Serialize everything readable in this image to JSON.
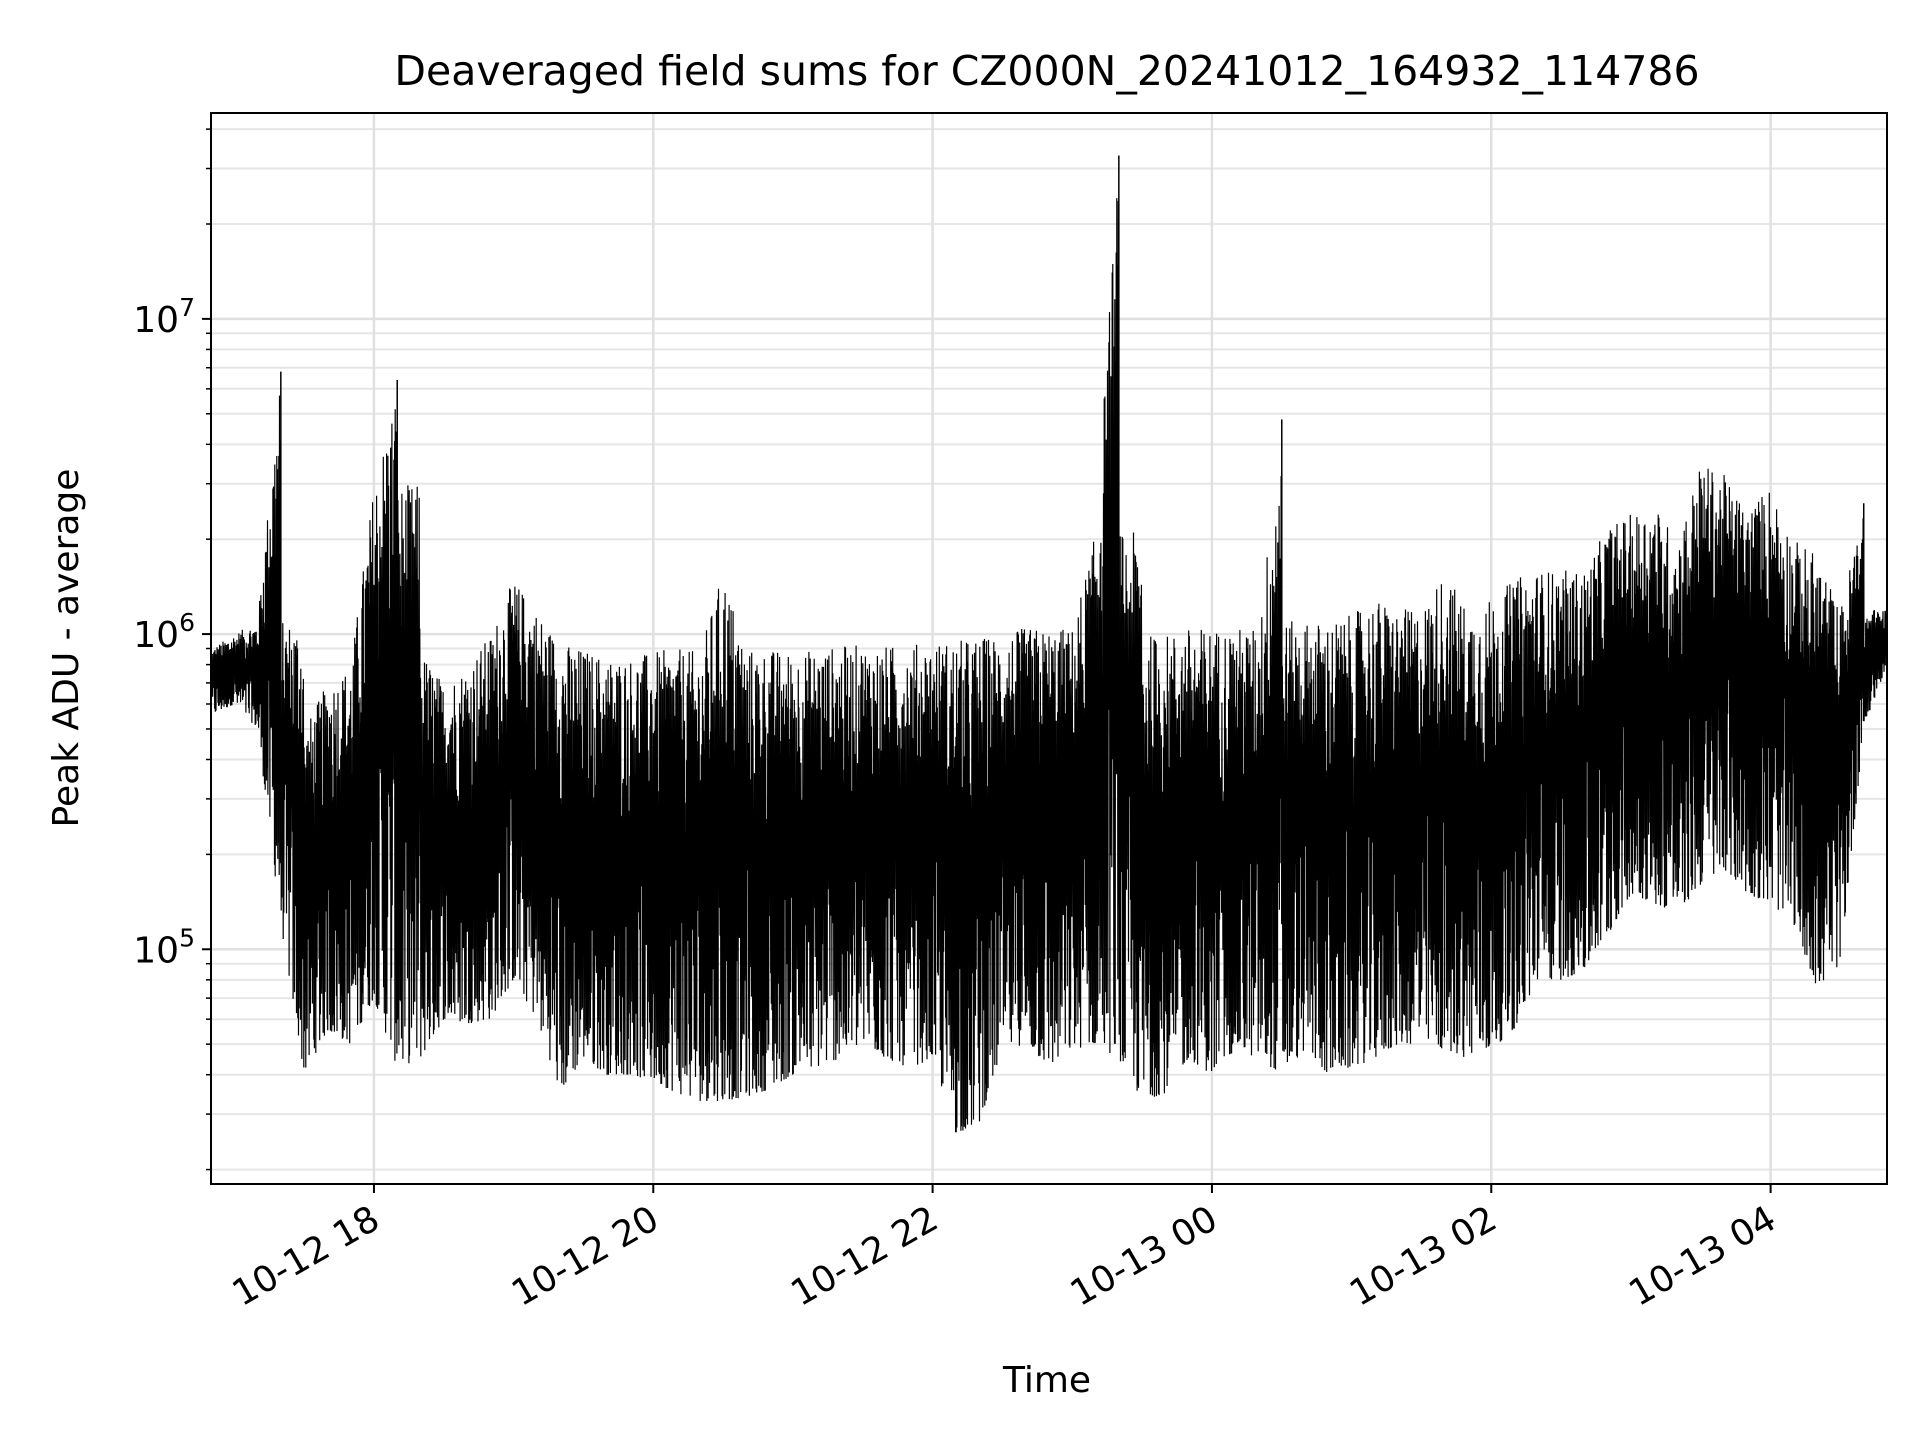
{
  "chart_data": {
    "type": "line",
    "title": "Deaveraged field sums for CZ000N_20241012_164932_114786",
    "xlabel": "Time",
    "ylabel": "Peak ADU - average",
    "yscale": "log",
    "ylim": [
      18000,
      45000000
    ],
    "xlim": [
      "2024-10-12 16:50",
      "2024-10-13 04:50"
    ],
    "x_tick_labels": [
      "10-12 18",
      "10-12 20",
      "10-12 22",
      "10-13 00",
      "10-13 02",
      "10-13 04"
    ],
    "x_tick_times": [
      "2024-10-12 18:00",
      "2024-10-12 20:00",
      "2024-10-12 22:00",
      "2024-10-13 00:00",
      "2024-10-13 02:00",
      "2024-10-13 04:00"
    ],
    "y_tick_exponents": [
      "5",
      "6",
      "7"
    ],
    "y_tick_values": [
      100000,
      1000000,
      10000000
    ],
    "grid": true,
    "legend": "none",
    "line_color": "#000000",
    "series": [
      {
        "x": [
          "2024-10-12 16:50",
          "2024-10-12 17:00",
          "2024-10-12 17:10",
          "2024-10-12 17:20",
          "2024-10-12 17:30",
          "2024-10-12 17:40",
          "2024-10-12 17:50",
          "2024-10-12 18:00",
          "2024-10-12 18:10",
          "2024-10-12 18:20",
          "2024-10-12 18:30",
          "2024-10-12 18:40",
          "2024-10-12 18:50",
          "2024-10-12 19:00",
          "2024-10-12 19:10",
          "2024-10-12 19:20",
          "2024-10-12 19:30",
          "2024-10-12 19:40",
          "2024-10-12 19:50",
          "2024-10-12 20:00",
          "2024-10-12 20:10",
          "2024-10-12 20:20",
          "2024-10-12 20:30",
          "2024-10-12 20:40",
          "2024-10-12 20:50",
          "2024-10-12 21:00",
          "2024-10-12 21:10",
          "2024-10-12 21:20",
          "2024-10-12 21:30",
          "2024-10-12 21:40",
          "2024-10-12 21:50",
          "2024-10-12 22:00",
          "2024-10-12 22:10",
          "2024-10-12 22:20",
          "2024-10-12 22:30",
          "2024-10-12 22:40",
          "2024-10-12 22:50",
          "2024-10-12 23:00",
          "2024-10-12 23:10",
          "2024-10-12 23:20",
          "2024-10-12 23:30",
          "2024-10-12 23:40",
          "2024-10-12 23:50",
          "2024-10-13 00:00",
          "2024-10-13 00:10",
          "2024-10-13 00:20",
          "2024-10-13 00:30",
          "2024-10-13 00:40",
          "2024-10-13 00:50",
          "2024-10-13 01:00",
          "2024-10-13 01:10",
          "2024-10-13 01:20",
          "2024-10-13 01:30",
          "2024-10-13 01:40",
          "2024-10-13 01:50",
          "2024-10-13 02:00",
          "2024-10-13 02:10",
          "2024-10-13 02:20",
          "2024-10-13 02:30",
          "2024-10-13 02:40",
          "2024-10-13 02:50",
          "2024-10-13 03:00",
          "2024-10-13 03:10",
          "2024-10-13 03:20",
          "2024-10-13 03:30",
          "2024-10-13 03:40",
          "2024-10-13 03:50",
          "2024-10-13 04:00",
          "2024-10-13 04:10",
          "2024-10-13 04:20",
          "2024-10-13 04:30",
          "2024-10-13 04:40",
          "2024-10-13 04:50"
        ],
        "high": [
          900000,
          1000000,
          1100000,
          6800000,
          500000,
          700000,
          800000,
          3000000,
          6400000,
          900000,
          700000,
          800000,
          1000000,
          1500000,
          1200000,
          950000,
          900000,
          850000,
          850000,
          880000,
          900000,
          880000,
          1600000,
          900000,
          900000,
          880000,
          900000,
          920000,
          930000,
          920000,
          930000,
          950000,
          960000,
          980000,
          1000000,
          1050000,
          1050000,
          1050000,
          2100000,
          33000000,
          1000000,
          1000000,
          1050000,
          1050000,
          1050000,
          1050000,
          4800000,
          1100000,
          1100000,
          1150000,
          1300000,
          1200000,
          1200000,
          1600000,
          1200000,
          1300000,
          1500000,
          1600000,
          1600000,
          1600000,
          2200000,
          2400000,
          2600000,
          2000000,
          3500000,
          3200000,
          2500000,
          3000000,
          2000000,
          1800000,
          1200000,
          2600000,
          1200000
        ],
        "low": [
          550000,
          600000,
          500000,
          120000,
          40000,
          55000,
          50000,
          70000,
          42000,
          45000,
          60000,
          58000,
          60000,
          80000,
          60000,
          35000,
          45000,
          40000,
          40000,
          38000,
          35000,
          33000,
          33000,
          34000,
          36000,
          40000,
          42000,
          45000,
          50000,
          45000,
          42000,
          45000,
          26000,
          28000,
          48000,
          50000,
          42000,
          48000,
          50000,
          45000,
          33000,
          35000,
          45000,
          40000,
          48000,
          45000,
          40000,
          48000,
          40000,
          42000,
          45000,
          50000,
          50000,
          48000,
          45000,
          48000,
          56000,
          80000,
          80000,
          85000,
          110000,
          150000,
          140000,
          130000,
          160000,
          180000,
          150000,
          140000,
          120000,
          75000,
          90000,
          500000,
          800000
        ]
      }
    ]
  }
}
